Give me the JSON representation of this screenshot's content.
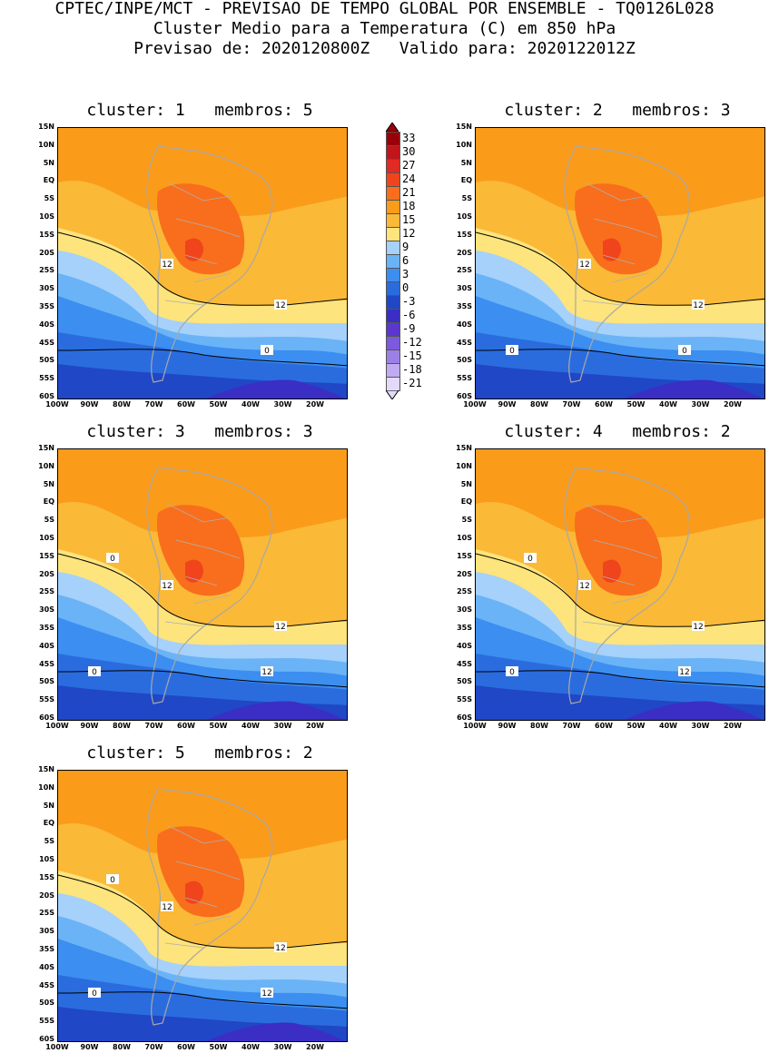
{
  "header": {
    "line1": "CPTEC/INPE/MCT - PREVISAO DE TEMPO GLOBAL POR ENSEMBLE - TQ0126L028",
    "line2": "Cluster Medio para a Temperatura (C) em 850 hPa",
    "line3": "Previsao de: 2020120800Z   Valido para: 2020122012Z"
  },
  "axes": {
    "lat_labels": [
      "15N",
      "10N",
      "5N",
      "EQ",
      "5S",
      "10S",
      "15S",
      "20S",
      "25S",
      "30S",
      "35S",
      "40S",
      "45S",
      "50S",
      "55S",
      "60S"
    ],
    "lon_labels": [
      "100W",
      "90W",
      "80W",
      "70W",
      "60W",
      "50W",
      "40W",
      "30W",
      "20W"
    ]
  },
  "colorbar": {
    "labels": [
      "33",
      "30",
      "27",
      "24",
      "21",
      "18",
      "15",
      "12",
      "9",
      "6",
      "3",
      "0",
      "-3",
      "-6",
      "-9",
      "-12",
      "-15",
      "-18",
      "-21"
    ],
    "colors": [
      "#9a0008",
      "#c3141b",
      "#e02a24",
      "#f0441c",
      "#f86e1c",
      "#fb9b1a",
      "#fbb938",
      "#fde47c",
      "#a5d1fb",
      "#6ab3f6",
      "#3c8ef0",
      "#2a6cde",
      "#2047c5",
      "#3a2ec4",
      "#5a38cf",
      "#7c5ade",
      "#9d80e6",
      "#c0aaf0",
      "#e3d9fa"
    ]
  },
  "panels": [
    {
      "title": "cluster: 1   membros: 5",
      "contour_labels": [
        "12",
        "12",
        "0"
      ]
    },
    {
      "title": "cluster: 2   membros: 3",
      "contour_labels": [
        "12",
        "12",
        "0",
        "0"
      ]
    },
    {
      "title": "cluster: 3   membros: 3",
      "contour_labels": [
        "12",
        "12",
        "12",
        "0",
        "0"
      ]
    },
    {
      "title": "cluster: 4   membros: 2",
      "contour_labels": [
        "12",
        "12",
        "12",
        "0",
        "0"
      ]
    },
    {
      "title": "cluster: 5   membros: 2",
      "contour_labels": [
        "12",
        "12",
        "12",
        "0",
        "0"
      ]
    }
  ]
}
